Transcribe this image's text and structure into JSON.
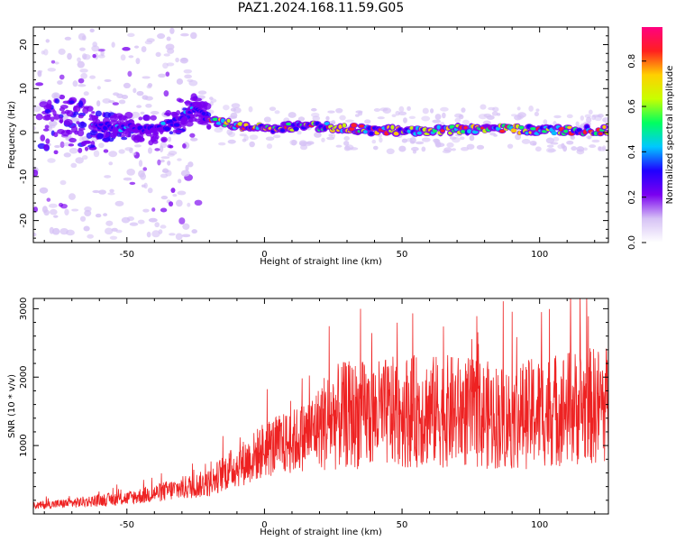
{
  "title": "PAZ1.2024.168.11.59.G05",
  "chart_data": [
    {
      "type": "heatmap",
      "panel": "top",
      "xlabel": "Height of straight line (km)",
      "ylabel": "Frequency (Hz)",
      "xlim": [
        -84,
        125
      ],
      "ylim": [
        -25,
        24
      ],
      "xticks": [
        -50,
        0,
        50,
        100
      ],
      "xtick_labels": [
        "-50",
        "0",
        "50",
        "100"
      ],
      "yticks": [
        -20,
        -10,
        0,
        10,
        20
      ],
      "ytick_labels": [
        "-20",
        "-10",
        "0",
        "10",
        "20"
      ],
      "ridge": {
        "description_points_x": [
          -62,
          -50,
          -40,
          -30,
          -25,
          -20,
          -10,
          0,
          20,
          40,
          60,
          80,
          100,
          125
        ],
        "frequency_hz": [
          1.5,
          1,
          0.5,
          3,
          6,
          3,
          1.5,
          1,
          1.5,
          0.5,
          0.5,
          1,
          0.5,
          0.5
        ]
      },
      "colorbar": {
        "label": "Normalized spectral amplitude",
        "range": [
          0,
          0.95
        ],
        "ticks": [
          0.0,
          0.2,
          0.4,
          0.6,
          0.8
        ],
        "tick_labels": [
          "0.0",
          "0.2",
          "0.4",
          "0.6",
          "0.8"
        ],
        "colormap": [
          "#ffffff",
          "#d6c2f5",
          "#7a00f0",
          "#2000ff",
          "#00c8ff",
          "#00ff60",
          "#c8ff00",
          "#ffd000",
          "#ff2020",
          "#ff0080"
        ]
      },
      "grid": false
    },
    {
      "type": "line",
      "panel": "bottom",
      "xlabel": "Height of straight line (km)",
      "ylabel": "SNR (10 * v/v)",
      "xlim": [
        -84,
        125
      ],
      "ylim": [
        0,
        3150
      ],
      "xticks": [
        -50,
        0,
        50,
        100
      ],
      "xtick_labels": [
        "-50",
        "0",
        "50",
        "100"
      ],
      "yticks": [
        1000,
        2000,
        3000
      ],
      "ytick_labels": [
        "1000",
        "2000",
        "3000"
      ],
      "series": [
        {
          "color": "#ee2222",
          "x": [
            -84,
            -70,
            -60,
            -50,
            -40,
            -30,
            -20,
            -15,
            -10,
            -5,
            0,
            5,
            10,
            15,
            20,
            25,
            30,
            40,
            50,
            60,
            70,
            80,
            90,
            100,
            110,
            120,
            125
          ],
          "y": [
            120,
            160,
            200,
            230,
            300,
            380,
            450,
            600,
            700,
            800,
            950,
            1000,
            1050,
            1150,
            1300,
            1400,
            1450,
            1450,
            1500,
            1500,
            1500,
            1450,
            1400,
            1500,
            1550,
            1580,
            1600
          ]
        }
      ],
      "grid": false
    }
  ]
}
